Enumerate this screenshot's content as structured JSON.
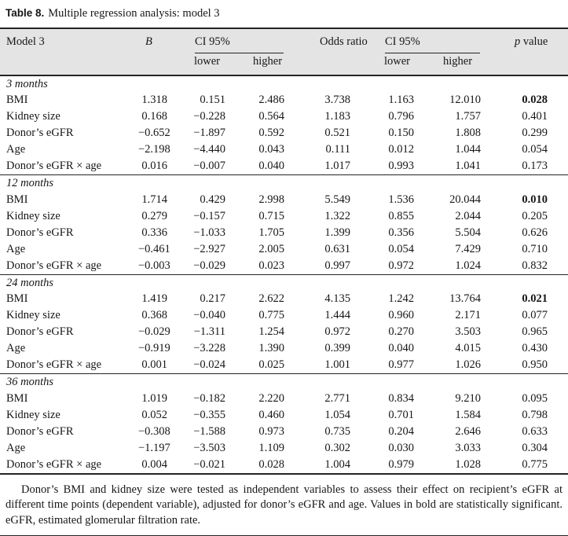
{
  "caption": {
    "label": "Table 8.",
    "text": "Multiple regression analysis: model 3"
  },
  "table": {
    "header": {
      "model": "Model 3",
      "b": "B",
      "ci1": "CI 95%",
      "odds": "Odds ratio",
      "ci2": "CI 95%",
      "p_symbol": "p",
      "p_rest": "value",
      "lower1": "lower",
      "higher1": "higher",
      "lower2": "lower",
      "higher2": "higher"
    },
    "sections": [
      {
        "label": "3 months",
        "rows": [
          {
            "name": "BMI",
            "values": [
              "1.318",
              "0.151",
              "2.486",
              "3.738",
              "1.163",
              "12.010",
              "0.028"
            ],
            "p_bold": true
          },
          {
            "name": "Kidney size",
            "values": [
              "0.168",
              "−0.228",
              "0.564",
              "1.183",
              "0.796",
              "1.757",
              "0.401"
            ],
            "p_bold": false
          },
          {
            "name": "Donor’s eGFR",
            "values": [
              "−0.652",
              "−1.897",
              "0.592",
              "0.521",
              "0.150",
              "1.808",
              "0.299"
            ],
            "p_bold": false
          },
          {
            "name": "Age",
            "values": [
              "−2.198",
              "−4.440",
              "0.043",
              "0.111",
              "0.012",
              "1.044",
              "0.054"
            ],
            "p_bold": false
          },
          {
            "name": "Donor’s eGFR × age",
            "values": [
              "0.016",
              "−0.007",
              "0.040",
              "1.017",
              "0.993",
              "1.041",
              "0.173"
            ],
            "p_bold": false
          }
        ]
      },
      {
        "label": "12 months",
        "rows": [
          {
            "name": "BMI",
            "values": [
              "1.714",
              "0.429",
              "2.998",
              "5.549",
              "1.536",
              "20.044",
              "0.010"
            ],
            "p_bold": true
          },
          {
            "name": "Kidney size",
            "values": [
              "0.279",
              "−0.157",
              "0.715",
              "1.322",
              "0.855",
              "2.044",
              "0.205"
            ],
            "p_bold": false
          },
          {
            "name": "Donor’s eGFR",
            "values": [
              "0.336",
              "−1.033",
              "1.705",
              "1.399",
              "0.356",
              "5.504",
              "0.626"
            ],
            "p_bold": false
          },
          {
            "name": "Age",
            "values": [
              "−0.461",
              "−2.927",
              "2.005",
              "0.631",
              "0.054",
              "7.429",
              "0.710"
            ],
            "p_bold": false
          },
          {
            "name": "Donor’s eGFR × age",
            "values": [
              "−0.003",
              "−0.029",
              "0.023",
              "0.997",
              "0.972",
              "1.024",
              "0.832"
            ],
            "p_bold": false
          }
        ]
      },
      {
        "label": "24 months",
        "rows": [
          {
            "name": "BMI",
            "values": [
              "1.419",
              "0.217",
              "2.622",
              "4.135",
              "1.242",
              "13.764",
              "0.021"
            ],
            "p_bold": true
          },
          {
            "name": "Kidney size",
            "values": [
              "0.368",
              "−0.040",
              "0.775",
              "1.444",
              "0.960",
              "2.171",
              "0.077"
            ],
            "p_bold": false
          },
          {
            "name": "Donor’s eGFR",
            "values": [
              "−0.029",
              "−1.311",
              "1.254",
              "0.972",
              "0.270",
              "3.503",
              "0.965"
            ],
            "p_bold": false
          },
          {
            "name": "Age",
            "values": [
              "−0.919",
              "−3.228",
              "1.390",
              "0.399",
              "0.040",
              "4.015",
              "0.430"
            ],
            "p_bold": false
          },
          {
            "name": "Donor’s eGFR × age",
            "values": [
              "0.001",
              "−0.024",
              "0.025",
              "1.001",
              "0.977",
              "1.026",
              "0.950"
            ],
            "p_bold": false
          }
        ]
      },
      {
        "label": "36 months",
        "rows": [
          {
            "name": "BMI",
            "values": [
              "1.019",
              "−0.182",
              "2.220",
              "2.771",
              "0.834",
              "9.210",
              "0.095"
            ],
            "p_bold": false
          },
          {
            "name": "Kidney size",
            "values": [
              "0.052",
              "−0.355",
              "0.460",
              "1.054",
              "0.701",
              "1.584",
              "0.798"
            ],
            "p_bold": false
          },
          {
            "name": "Donor’s eGFR",
            "values": [
              "−0.308",
              "−1.588",
              "0.973",
              "0.735",
              "0.204",
              "2.646",
              "0.633"
            ],
            "p_bold": false
          },
          {
            "name": "Age",
            "values": [
              "−1.197",
              "−3.503",
              "1.109",
              "0.302",
              "0.030",
              "3.033",
              "0.304"
            ],
            "p_bold": false
          },
          {
            "name": "Donor’s eGFR × age",
            "values": [
              "0.004",
              "−0.021",
              "0.028",
              "1.004",
              "0.979",
              "1.028",
              "0.775"
            ],
            "p_bold": false
          }
        ]
      }
    ]
  },
  "footnote": "Donor’s BMI and kidney size were tested as independent variables to assess their effect on recipient’s eGFR at different time points (dependent variable), adjusted for donor’s eGFR and age. Values in bold are statistically significant. eGFR, estimated glomerular filtration rate."
}
